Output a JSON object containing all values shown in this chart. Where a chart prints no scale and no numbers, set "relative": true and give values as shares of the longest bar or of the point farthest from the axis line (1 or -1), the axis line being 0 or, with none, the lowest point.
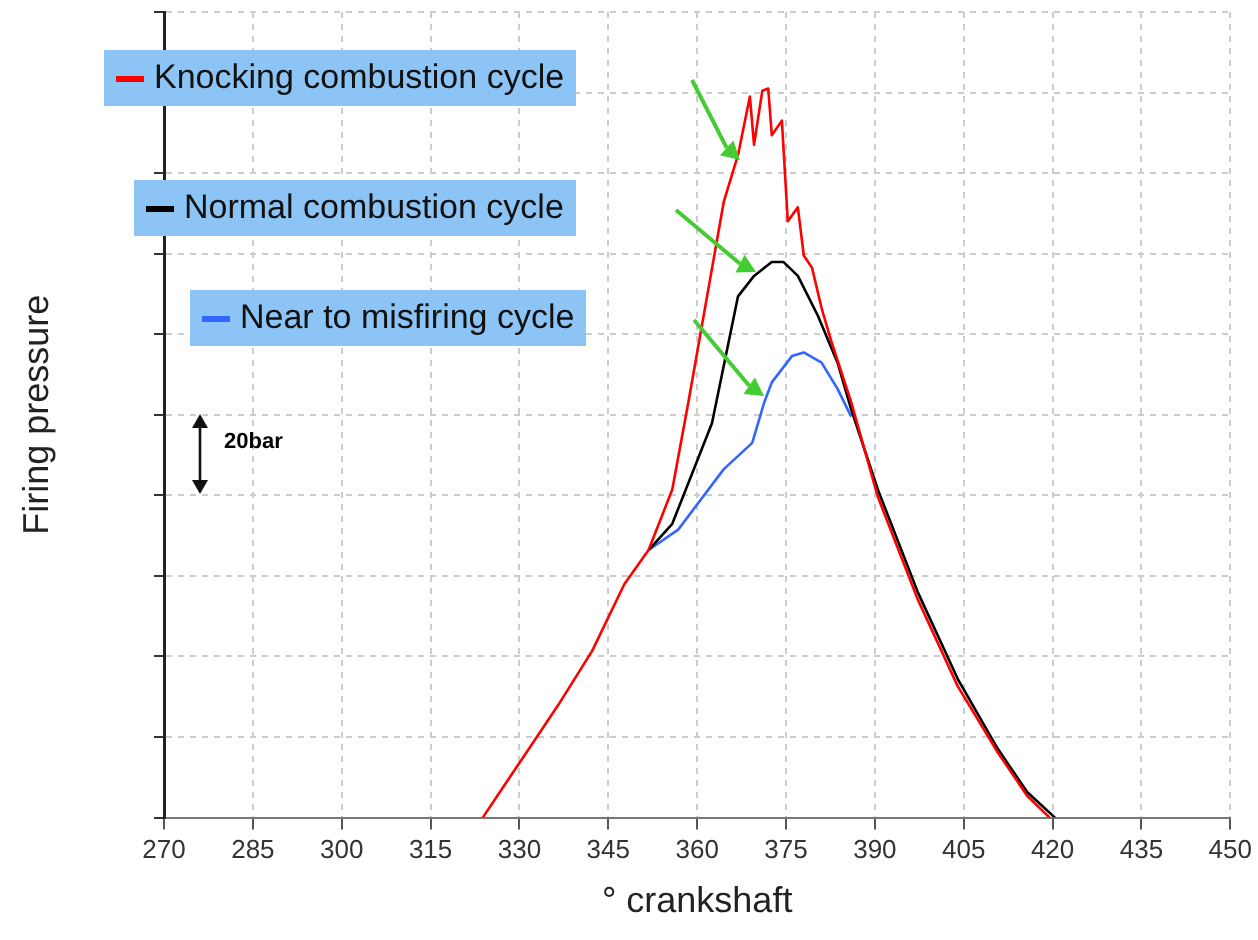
{
  "chart_data": {
    "type": "line",
    "relative": true,
    "xlabel": "° crankshaft",
    "ylabel": "Firing pressure",
    "xlim": [
      270,
      450
    ],
    "xticks": [
      270,
      285,
      300,
      315,
      330,
      345,
      360,
      375,
      390,
      405,
      420,
      435,
      450
    ],
    "grid": true,
    "legend": "top left",
    "marker": "none",
    "line_style": "solid",
    "annotations": [
      "20bar"
    ],
    "series": [
      {
        "name": "Knocking combustion cycle",
        "color": "#ff0000",
        "x": [
          323.8,
          330.9,
          336.6,
          342.3,
          347.7,
          351.8,
          355.8,
          358.5,
          364.5,
          366.9,
          368.9,
          369.6,
          371,
          372,
          372.6,
          374.3,
          375.3,
          377,
          378,
          379.4,
          381,
          382.7,
          386,
          390.5,
          397.2,
          404,
          410.7,
          415.7,
          419.5
        ],
        "values": [
          0,
          0.086,
          0.155,
          0.229,
          0.32,
          0.367,
          0.45,
          0.569,
          0.845,
          0.909,
          0.989,
          0.923,
          0.997,
          1,
          0.936,
          0.956,
          0.818,
          0.837,
          0.771,
          0.754,
          0.699,
          0.652,
          0.57,
          0.44,
          0.3,
          0.18,
          0.09,
          0.03,
          0
        ]
      },
      {
        "name": "Normal combustion cycle",
        "color": "#000000",
        "x": [
          351.8,
          355.8,
          362.5,
          366.9,
          369.6,
          372.6,
          374.6,
          377,
          380.4,
          383.7,
          386,
          390.5,
          397.2,
          404,
          410.7,
          415.7,
          420.4
        ],
        "values": [
          0.367,
          0.403,
          0.541,
          0.715,
          0.743,
          0.762,
          0.762,
          0.743,
          0.688,
          0.624,
          0.56,
          0.45,
          0.31,
          0.19,
          0.095,
          0.035,
          0
        ]
      },
      {
        "name": "Near to misfiring cycle",
        "color": "#3366ff",
        "x": [
          351.8,
          356.8,
          364.5,
          369.3,
          371.3,
          372.6,
          376,
          378,
          381,
          383.7,
          386
        ],
        "values": [
          0.367,
          0.395,
          0.478,
          0.514,
          0.569,
          0.597,
          0.633,
          0.638,
          0.624,
          0.588,
          0.55
        ]
      }
    ]
  }
}
